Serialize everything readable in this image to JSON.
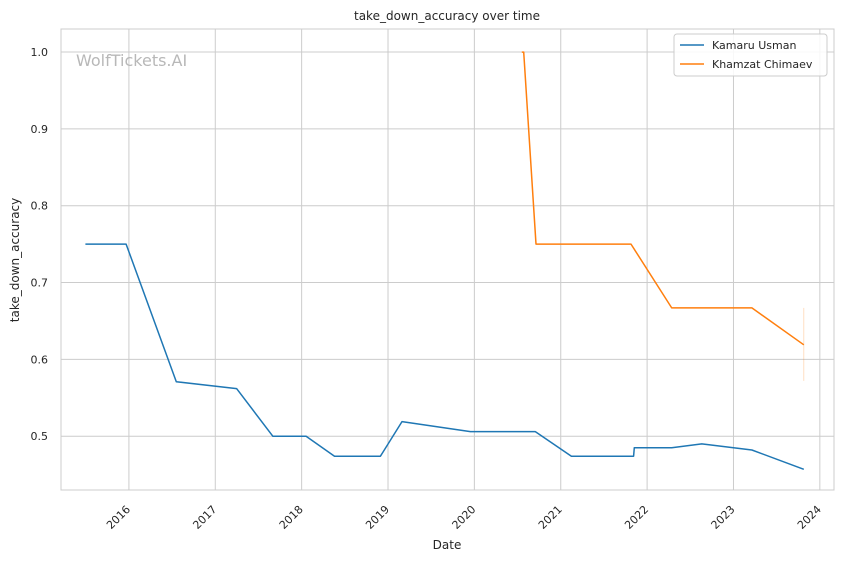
{
  "watermark": "WolfTickets.AI",
  "chart_data": {
    "type": "line",
    "title": "take_down_accuracy over time",
    "xlabel": "Date",
    "ylabel": "take_down_accuracy",
    "x_ticks": [
      "2016",
      "2017",
      "2018",
      "2019",
      "2020",
      "2021",
      "2022",
      "2023",
      "2024"
    ],
    "y_ticks": [
      "0.5",
      "0.6",
      "0.7",
      "0.8",
      "0.9",
      "1.0"
    ],
    "xlim": [
      "2015-03-20",
      "2024-03-01"
    ],
    "ylim": [
      0.43,
      1.03
    ],
    "grid": true,
    "legend_position": "top-right",
    "series": [
      {
        "name": "Kamaru Usman",
        "color": "#1f77b4",
        "points": [
          {
            "x": "2015-07-01",
            "y": 0.75
          },
          {
            "x": "2015-12-20",
            "y": 0.75
          },
          {
            "x": "2016-07-20",
            "y": 0.571
          },
          {
            "x": "2017-04-01",
            "y": 0.562
          },
          {
            "x": "2017-09-01",
            "y": 0.5
          },
          {
            "x": "2018-01-20",
            "y": 0.5
          },
          {
            "x": "2018-05-20",
            "y": 0.474
          },
          {
            "x": "2018-11-30",
            "y": 0.474
          },
          {
            "x": "2019-03-01",
            "y": 0.519
          },
          {
            "x": "2019-12-15",
            "y": 0.506
          },
          {
            "x": "2020-09-15",
            "y": 0.506
          },
          {
            "x": "2021-02-15",
            "y": 0.474
          },
          {
            "x": "2021-11-05",
            "y": 0.474
          },
          {
            "x": "2021-11-08",
            "y": 0.485
          },
          {
            "x": "2022-04-15",
            "y": 0.485
          },
          {
            "x": "2022-08-20",
            "y": 0.49
          },
          {
            "x": "2023-03-20",
            "y": 0.482
          },
          {
            "x": "2023-10-25",
            "y": 0.457
          }
        ]
      },
      {
        "name": "Khamzat Chimaev",
        "color": "#ff7f0e",
        "points": [
          {
            "x": "2020-07-20",
            "y": 1.0
          },
          {
            "x": "2020-07-28",
            "y": 1.0
          },
          {
            "x": "2020-09-18",
            "y": 0.75
          },
          {
            "x": "2021-10-25",
            "y": 0.75
          },
          {
            "x": "2022-04-15",
            "y": 0.667
          },
          {
            "x": "2023-03-20",
            "y": 0.667
          },
          {
            "x": "2023-10-25",
            "y": 0.619
          }
        ],
        "error_band": {
          "x": "2023-10-25",
          "low": 0.572,
          "high": 0.667
        }
      }
    ]
  }
}
